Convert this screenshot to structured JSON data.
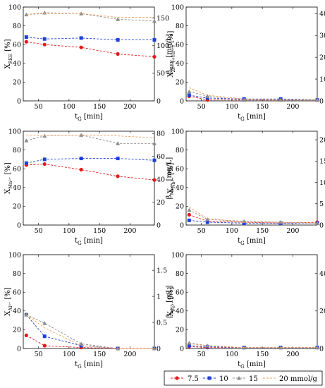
{
  "chart_data": [
    {
      "type": "line",
      "panel": "a",
      "xlabel": {
        "main": "t",
        "sub": "G",
        "unit": "[min]"
      },
      "ylabel": {
        "main": "X",
        "sub": "REE",
        "unit": "[%]"
      },
      "y2label": {
        "main": "β",
        "sub": "REE",
        "unit": "[mg/L]"
      },
      "xlim": [
        25,
        240
      ],
      "ylim": [
        0,
        100
      ],
      "y2lim": [
        0,
        170
      ],
      "xticks": [
        50,
        100,
        150,
        200
      ],
      "yticks": [
        0,
        20,
        40,
        60,
        80,
        100
      ],
      "y2ticks": [
        0,
        50,
        100,
        150
      ],
      "x": [
        30,
        60,
        120,
        180,
        240
      ],
      "series": [
        {
          "name": "7.5",
          "values": [
            63,
            60,
            57,
            50,
            47
          ]
        },
        {
          "name": "10",
          "values": [
            68,
            66,
            67,
            65,
            65
          ]
        },
        {
          "name": "15",
          "values": [
            92,
            94,
            93,
            87,
            85
          ]
        },
        {
          "name": "20 mmol/g",
          "values": [
            92,
            93,
            93,
            89,
            89
          ]
        }
      ]
    },
    {
      "type": "line",
      "panel": "b",
      "xlabel": {
        "main": "t",
        "sub": "G",
        "unit": "[min]"
      },
      "ylabel": {
        "main": "X",
        "sub": "Zr⁴⁺(+Hf⁴⁺)",
        "unit": "[%]"
      },
      "y2label": {
        "main": "β",
        "sub": "Zr⁴⁺(+Hf⁴⁺)",
        "unit": "[mg/L]"
      },
      "xlim": [
        25,
        240
      ],
      "ylim": [
        0,
        100
      ],
      "y2lim": [
        0,
        430
      ],
      "xticks": [
        50,
        100,
        150,
        200
      ],
      "yticks": [
        0,
        20,
        40,
        60,
        80,
        100
      ],
      "y2ticks": [
        0,
        100,
        200,
        300,
        400
      ],
      "x": [
        30,
        60,
        120,
        180,
        240
      ],
      "series": [
        {
          "name": "7.5",
          "values": [
            5,
            1,
            1,
            1,
            1
          ]
        },
        {
          "name": "10",
          "values": [
            6,
            3,
            2,
            2,
            1
          ]
        },
        {
          "name": "15",
          "values": [
            10,
            5,
            1,
            1,
            1
          ]
        },
        {
          "name": "20 mmol/g",
          "values": [
            14,
            6,
            2,
            1,
            1
          ]
        }
      ]
    },
    {
      "type": "line",
      "panel": "c",
      "xlabel": {
        "main": "t",
        "sub": "G",
        "unit": "[min]"
      },
      "ylabel": {
        "main": "X",
        "sub": "Mn²⁺",
        "unit": "[%]"
      },
      "y2label": {
        "main": "β",
        "sub": "Mn²⁺",
        "unit": "[mg/L]"
      },
      "xlim": [
        25,
        240
      ],
      "ylim": [
        0,
        100
      ],
      "y2lim": [
        0,
        82
      ],
      "xticks": [
        50,
        100,
        150,
        200
      ],
      "yticks": [
        0,
        20,
        40,
        60,
        80,
        100
      ],
      "y2ticks": [
        0,
        20,
        40,
        60,
        80
      ],
      "x": [
        30,
        60,
        120,
        180,
        240
      ],
      "series": [
        {
          "name": "7.5",
          "values": [
            64,
            65,
            59,
            52,
            48
          ]
        },
        {
          "name": "10",
          "values": [
            66,
            70,
            71,
            71,
            69
          ]
        },
        {
          "name": "15",
          "values": [
            90,
            95,
            96,
            87,
            87
          ]
        },
        {
          "name": "20 mmol/g",
          "values": [
            96,
            95,
            96,
            95,
            93
          ]
        }
      ]
    },
    {
      "type": "line",
      "panel": "d",
      "xlabel": {
        "main": "t",
        "sub": "G",
        "unit": "[min]"
      },
      "ylabel": {
        "main": "X",
        "sub": "Nb³⁺",
        "unit": "[%]"
      },
      "y2label": {
        "main": "β",
        "sub": "Nb³⁺",
        "unit": "[mg/L]"
      },
      "xlim": [
        25,
        240
      ],
      "ylim": [
        0,
        100
      ],
      "y2lim": [
        0,
        22
      ],
      "xticks": [
        50,
        100,
        150,
        200
      ],
      "yticks": [
        0,
        20,
        40,
        60,
        80,
        100
      ],
      "y2ticks": [
        0,
        5,
        10,
        15,
        20
      ],
      "x": [
        30,
        60,
        120,
        180,
        240
      ],
      "series": [
        {
          "name": "7.5",
          "values": [
            11,
            4,
            3,
            2,
            3
          ]
        },
        {
          "name": "10",
          "values": [
            5,
            3,
            2,
            2,
            2
          ]
        },
        {
          "name": "15",
          "values": [
            16,
            6,
            4,
            3,
            2
          ]
        },
        {
          "name": "20 mmol/g",
          "values": [
            19,
            7,
            3,
            3,
            2
          ]
        }
      ]
    },
    {
      "type": "line",
      "panel": "e",
      "xlabel": {
        "main": "t",
        "sub": "G",
        "unit": "[min]"
      },
      "ylabel": {
        "main": "X",
        "sub": "Al³⁺",
        "unit": "[%]"
      },
      "y2label": {
        "main": "β",
        "sub": "Al³⁺",
        "unit": "[g/L]"
      },
      "xlim": [
        25,
        240
      ],
      "ylim": [
        0,
        100
      ],
      "y2lim": [
        0,
        1.8
      ],
      "xticks": [
        50,
        100,
        150,
        200
      ],
      "yticks": [
        0,
        20,
        40,
        60,
        80,
        100
      ],
      "y2ticks": [
        0,
        0.5,
        1,
        1.5
      ],
      "x": [
        30,
        60,
        120,
        180,
        240
      ],
      "series": [
        {
          "name": "7.5",
          "values": [
            14,
            3,
            1,
            0,
            0
          ]
        },
        {
          "name": "10",
          "values": [
            36,
            13,
            3,
            0,
            0
          ]
        },
        {
          "name": "15",
          "values": [
            36,
            27,
            5,
            0,
            0
          ]
        },
        {
          "name": "20 mmol/g",
          "values": [
            36,
            22,
            3,
            0,
            0
          ]
        }
      ]
    },
    {
      "type": "line",
      "panel": "f",
      "xlabel": {
        "main": "t",
        "sub": "G",
        "unit": "[min]"
      },
      "ylabel": {
        "main": "X",
        "sub": "Fe³⁺",
        "unit": "[%]"
      },
      "y2label": {
        "main": "β",
        "sub": "Fe³⁺",
        "unit": "[mg/L]"
      },
      "xlim": [
        25,
        240
      ],
      "ylim": [
        0,
        100
      ],
      "y2lim": [
        0,
        500
      ],
      "xticks": [
        50,
        100,
        150,
        200
      ],
      "yticks": [
        0,
        20,
        40,
        60,
        80,
        100
      ],
      "y2ticks": [
        0,
        200,
        400
      ],
      "x": [
        30,
        60,
        120,
        180,
        240
      ],
      "series": [
        {
          "name": "7.5",
          "values": [
            2,
            1,
            1,
            1,
            1
          ]
        },
        {
          "name": "10",
          "values": [
            3,
            2,
            1,
            1,
            1
          ]
        },
        {
          "name": "15",
          "values": [
            6,
            3,
            1,
            1,
            1
          ]
        },
        {
          "name": "20 mmol/g",
          "values": [
            5,
            3,
            1,
            1,
            1
          ]
        }
      ]
    }
  ],
  "legend": {
    "position": "bottom-right",
    "entries": [
      "7.5",
      "10",
      "15",
      "20 mmol/g"
    ]
  },
  "colors": {
    "7.5": "#e31a1c",
    "10": "#1f3fdc",
    "15": "#8c8c8c",
    "20 mmol/g": "#f4a15c"
  },
  "markers": {
    "7.5": "circle",
    "10": "square",
    "15": "triangle",
    "20 mmol/g": "none"
  }
}
